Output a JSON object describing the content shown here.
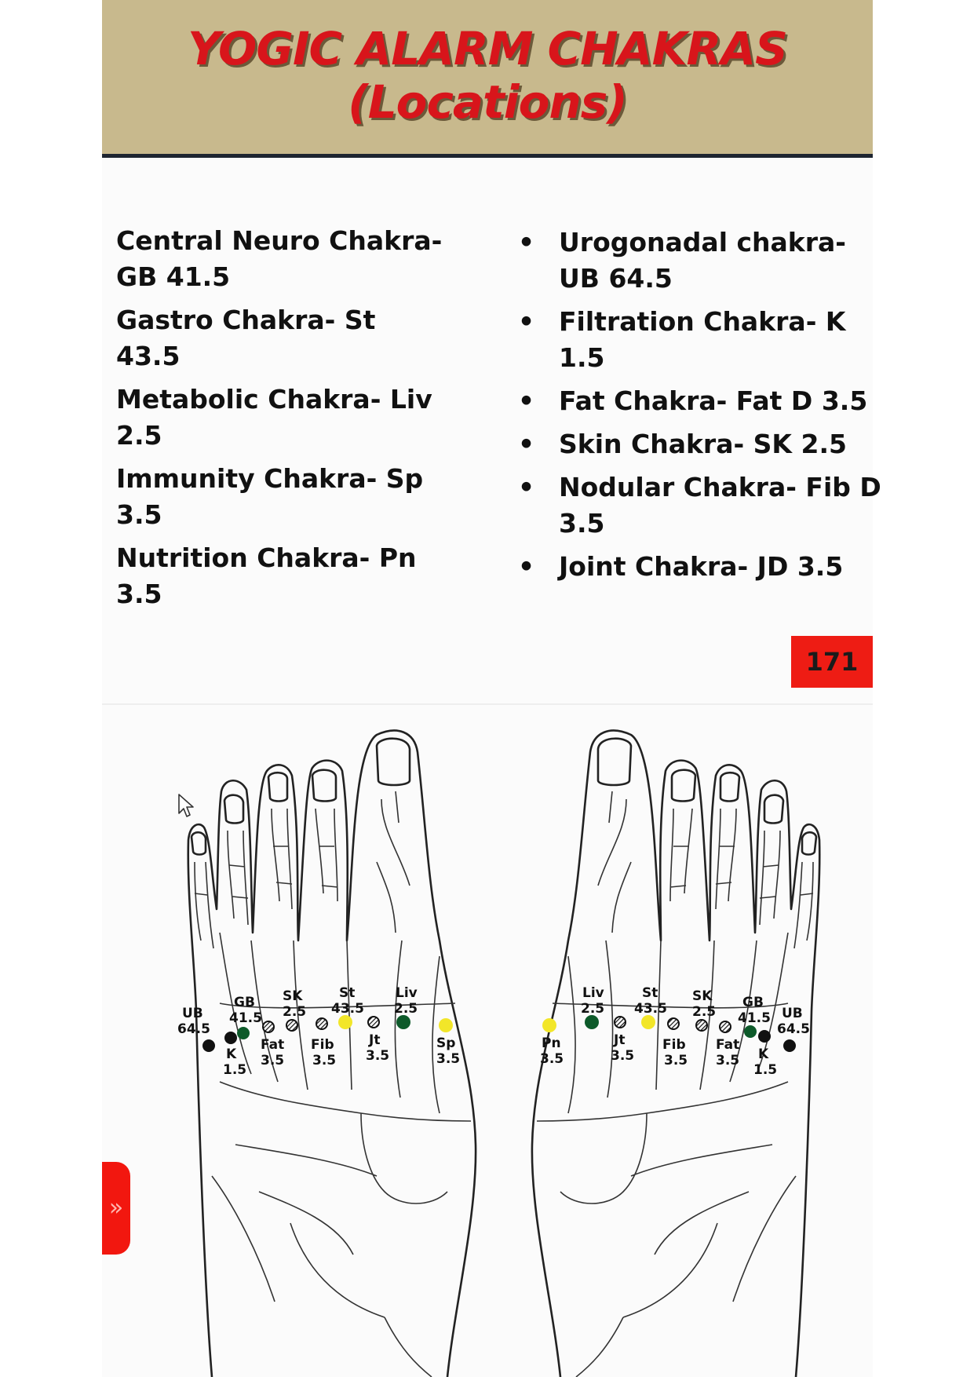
{
  "header": {
    "title_line1": "YOGIC ALARM CHAKRAS",
    "title_line2": "(Locations)"
  },
  "left_list": [
    {
      "text": "Central Neuro Chakra- GB 41.5"
    },
    {
      "text": "Gastro Chakra- St 43.5"
    },
    {
      "text": "Metabolic Chakra- Liv 2.5"
    },
    {
      "text": "Immunity Chakra- Sp 3.5"
    },
    {
      "text": "Nutrition Chakra- Pn 3.5"
    }
  ],
  "right_list": [
    {
      "bullet": "•",
      "text": "Urogonadal chakra- UB 64.5"
    },
    {
      "bullet": "•",
      "text": "Filtration Chakra- K 1.5"
    },
    {
      "bullet": "•",
      "text": "Fat Chakra- Fat D 3.5"
    },
    {
      "bullet": "•",
      "text": "Skin Chakra- SK 2.5"
    },
    {
      "bullet": "•",
      "text": "Nodular Chakra- Fib D 3.5"
    },
    {
      "bullet": "•",
      "text": "Joint Chakra- JD 3.5"
    }
  ],
  "page_number": "171",
  "side_tab_icon": "»",
  "colors": {
    "header_bg": "#c8b98d",
    "title_red": "#d8151b",
    "page_badge": "#ee1c14",
    "point_black": "#111111",
    "point_green": "#0d5a2a",
    "point_yellow": "#f2e629",
    "point_hatched": "#222222"
  },
  "left_foot_points": [
    {
      "code": "UB",
      "num": "64.5",
      "color": "black"
    },
    {
      "code": "GB",
      "num": "41.5",
      "color": "green"
    },
    {
      "code": "K",
      "num": "1.5",
      "color": "black"
    },
    {
      "code": "SK",
      "num": "2.5",
      "color": "hatched"
    },
    {
      "code": "Fat",
      "num": "3.5",
      "color": "hatched"
    },
    {
      "code": "St",
      "num": "43.5",
      "color": "yellow"
    },
    {
      "code": "Fib",
      "num": "3.5",
      "color": "hatched"
    },
    {
      "code": "Jt",
      "num": "3.5",
      "color": "hatched"
    },
    {
      "code": "Liv",
      "num": "2.5",
      "color": "green"
    },
    {
      "code": "Sp",
      "num": "3.5",
      "color": "yellow"
    }
  ],
  "right_foot_points": [
    {
      "code": "Pn",
      "num": "3.5",
      "color": "yellow"
    },
    {
      "code": "Liv",
      "num": "2.5",
      "color": "green"
    },
    {
      "code": "Jt",
      "num": "3.5",
      "color": "hatched"
    },
    {
      "code": "St",
      "num": "43.5",
      "color": "yellow"
    },
    {
      "code": "Fib",
      "num": "3.5",
      "color": "hatched"
    },
    {
      "code": "SK",
      "num": "2.5",
      "color": "hatched"
    },
    {
      "code": "Fat",
      "num": "3.5",
      "color": "hatched"
    },
    {
      "code": "GB",
      "num": "41.5",
      "color": "green"
    },
    {
      "code": "K",
      "num": "1.5",
      "color": "black"
    },
    {
      "code": "UB",
      "num": "64.5",
      "color": "black"
    }
  ]
}
